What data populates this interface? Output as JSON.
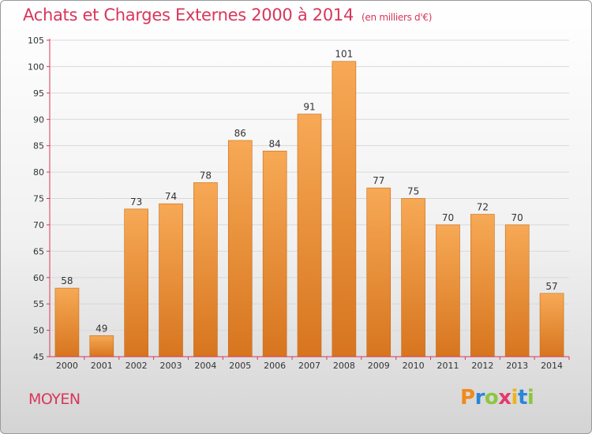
{
  "chart_data": {
    "type": "bar",
    "title": "Achats et Charges Externes 2000 à 2014",
    "subtitle": "(en milliers d'€)",
    "categories": [
      "2000",
      "2001",
      "2002",
      "2003",
      "2004",
      "2005",
      "2006",
      "2007",
      "2008",
      "2009",
      "2010",
      "2011",
      "2012",
      "2013",
      "2014"
    ],
    "values": [
      58,
      49,
      73,
      74,
      78,
      86,
      84,
      91,
      101,
      77,
      75,
      70,
      72,
      70,
      57
    ],
    "ylim": [
      45,
      105
    ],
    "yticks": [
      45,
      50,
      55,
      60,
      65,
      70,
      75,
      80,
      85,
      90,
      95,
      100,
      105
    ],
    "grid": true,
    "colors": {
      "bar_top": "#f7a955",
      "bar_bottom": "#d7751f",
      "bar_edge": "#c96a16",
      "grid": "#d9d9d9",
      "axis": "#d8365a",
      "title": "#d8365a"
    }
  },
  "footer": {
    "label": "MOYEN"
  },
  "logo": {
    "letters": [
      "P",
      "r",
      "o",
      "x",
      "i",
      "t",
      "i"
    ],
    "colors": [
      "#f08a1c",
      "#2a86d8",
      "#8cc63f",
      "#e33b6b",
      "#f0b21c",
      "#2a86d8",
      "#8cc63f"
    ]
  }
}
